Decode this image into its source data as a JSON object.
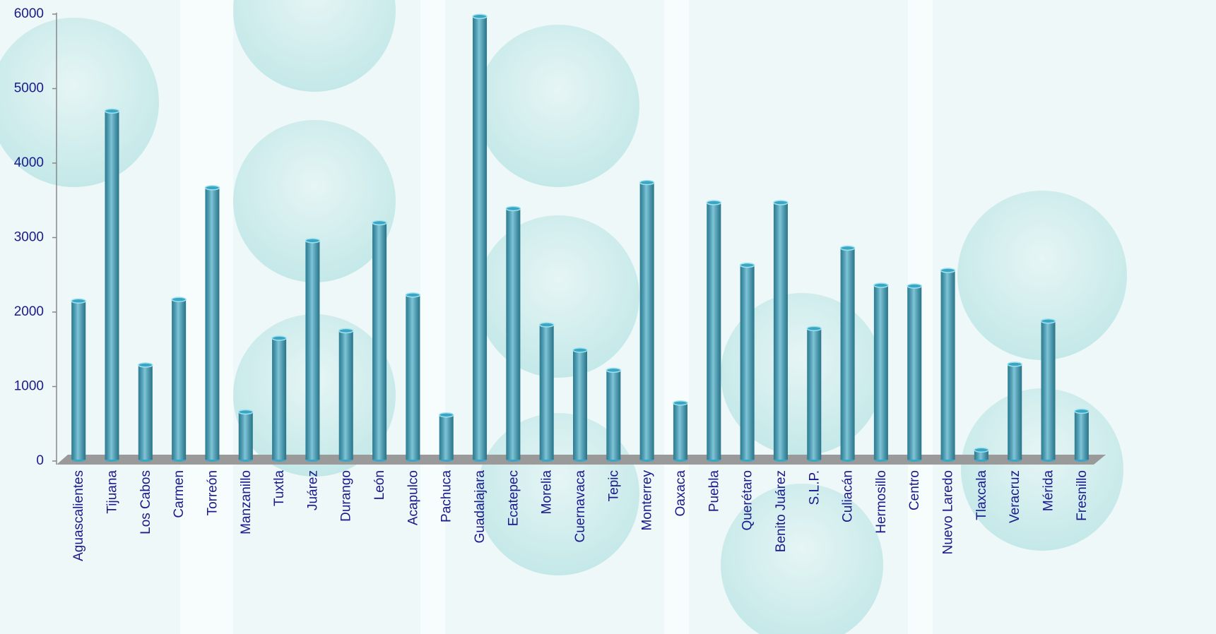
{
  "chart_data": {
    "type": "bar",
    "categories": [
      "Aguascalientes",
      "Tijuana",
      "Los Cabos",
      "Carmen",
      "Torreón",
      "Manzanillo",
      "Tuxtla",
      "Juárez",
      "Durango",
      "León",
      "Acapulco",
      "Pachuca",
      "Guadalajara",
      "Ecatepec",
      "Morelia",
      "Cuernavaca",
      "Tepic",
      "Monterrey",
      "Oaxaca",
      "Puebla",
      "Querétaro",
      "Benito Juárez",
      "S.L.P.",
      "Culiacán",
      "Hermosillo",
      "Centro",
      "Nuevo Laredo",
      "Tlaxcala",
      "Veracruz",
      "Mérida",
      "Fresnillo"
    ],
    "values": [
      2130,
      4680,
      1270,
      2150,
      3650,
      640,
      1630,
      2940,
      1730,
      3180,
      2210,
      600,
      5950,
      3370,
      1810,
      1470,
      1200,
      3720,
      760,
      3450,
      2610,
      3450,
      1760,
      2840,
      2340,
      2330,
      2540,
      130,
      1280,
      1860,
      650
    ],
    "color": "#3aa6c4",
    "ylim": [
      0,
      6000
    ],
    "yticks": [
      0,
      1000,
      2000,
      3000,
      4000,
      5000,
      6000
    ],
    "grid": false
  }
}
